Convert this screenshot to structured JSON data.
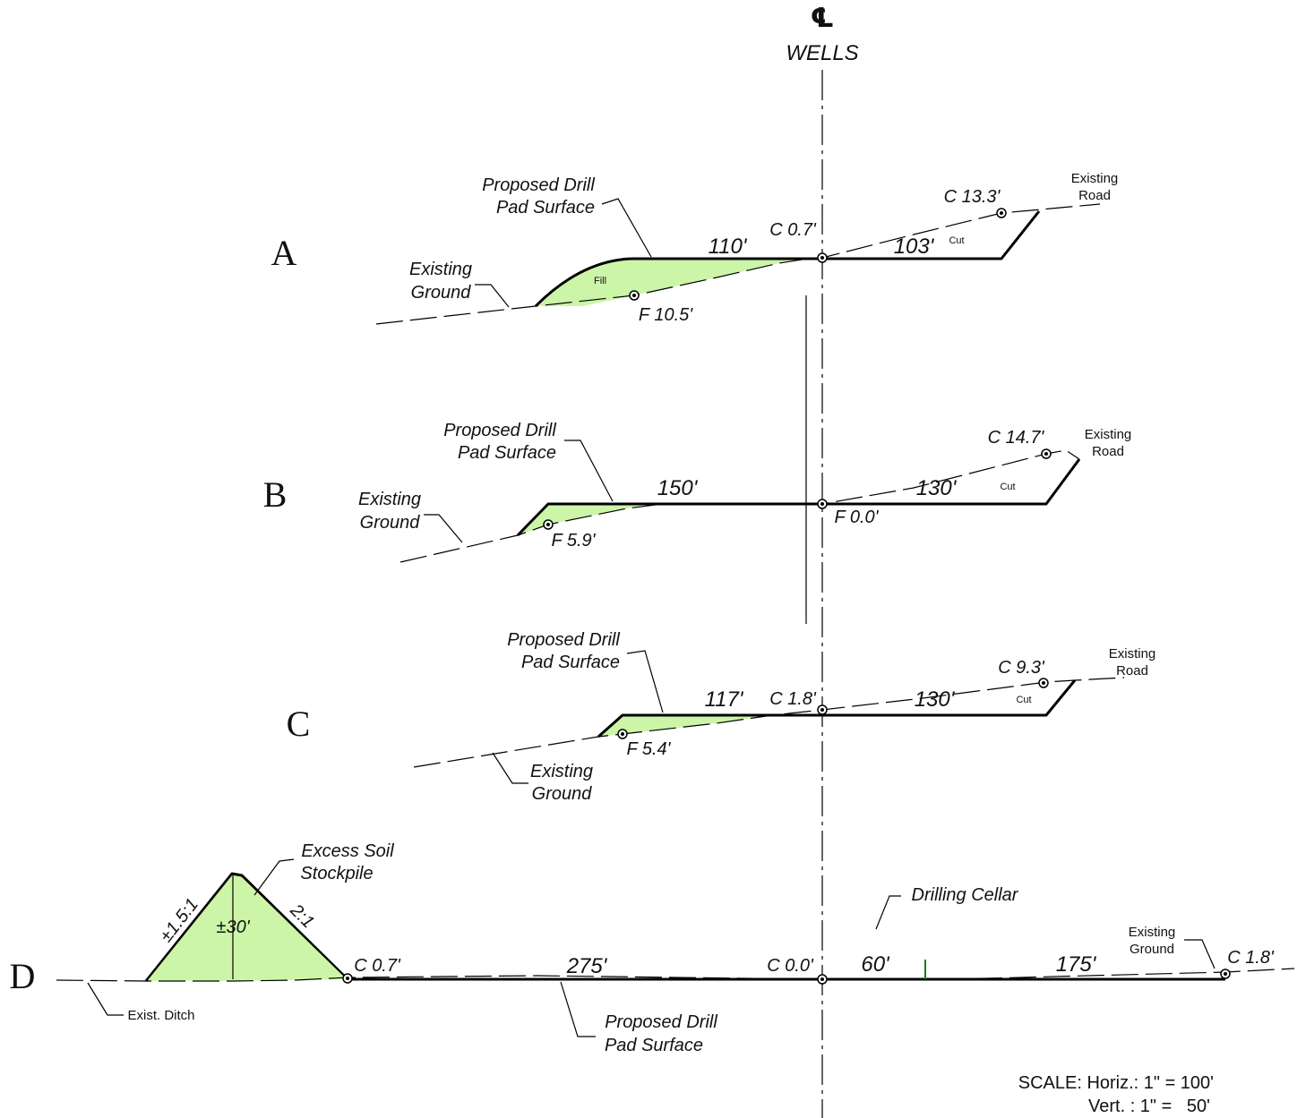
{
  "centerline": {
    "symbol": "℄",
    "label": "WELLS"
  },
  "colors": {
    "fill_area": "#ccf5a8",
    "line": "#000000",
    "marker": "#1a7a1a"
  },
  "sections": [
    {
      "id": "A",
      "pad_label": [
        "Proposed Drill",
        "Pad Surface"
      ],
      "ground_label": [
        "Existing",
        "Ground"
      ],
      "road_label": [
        "Existing",
        "Road"
      ],
      "dim_left": "110'",
      "dim_right": "103'",
      "center_value": "C 0.7'",
      "edge_cut": "C 13.3'",
      "edge_fill": "F 10.5'",
      "fill_word": "Fill",
      "cut_word": "Cut"
    },
    {
      "id": "B",
      "pad_label": [
        "Proposed Drill",
        "Pad Surface"
      ],
      "ground_label": [
        "Existing",
        "Ground"
      ],
      "road_label": [
        "Existing",
        "Road"
      ],
      "dim_left": "150'",
      "dim_right": "130'",
      "center_value": "F 0.0'",
      "edge_cut": "C 14.7'",
      "edge_fill": "F 5.9'",
      "cut_word": "Cut"
    },
    {
      "id": "C",
      "pad_label": [
        "Proposed Drill",
        "Pad Surface"
      ],
      "ground_label": [
        "Existing",
        "Ground"
      ],
      "road_label": [
        "Existing",
        "Road"
      ],
      "dim_left": "117'",
      "dim_right": "130'",
      "center_value": "C 1.8'",
      "edge_cut": "C 9.3'",
      "edge_fill": "F 5.4'",
      "cut_word": "Cut"
    },
    {
      "id": "D",
      "stockpile_label": [
        "Excess Soil",
        "Stockpile"
      ],
      "slope_left": "±1.5:1",
      "slope_right": "2:1",
      "stockpile_height": "±30'",
      "ditch_label": "Exist. Ditch",
      "pad_label": [
        "Proposed Drill",
        "Pad Surface"
      ],
      "ground_label": [
        "Existing",
        "Ground"
      ],
      "cellar_label": "Drilling Cellar",
      "left_edge": "C 0.7'",
      "dim_left": "275'",
      "center_value": "C 0.0'",
      "dim_cellar": "60'",
      "dim_right": "175'",
      "right_edge": "C 1.8'"
    }
  ],
  "scale": {
    "line1": "SCALE: Horiz.: 1\" = 100'",
    "line2": "Vert. : 1\" =   50'"
  }
}
